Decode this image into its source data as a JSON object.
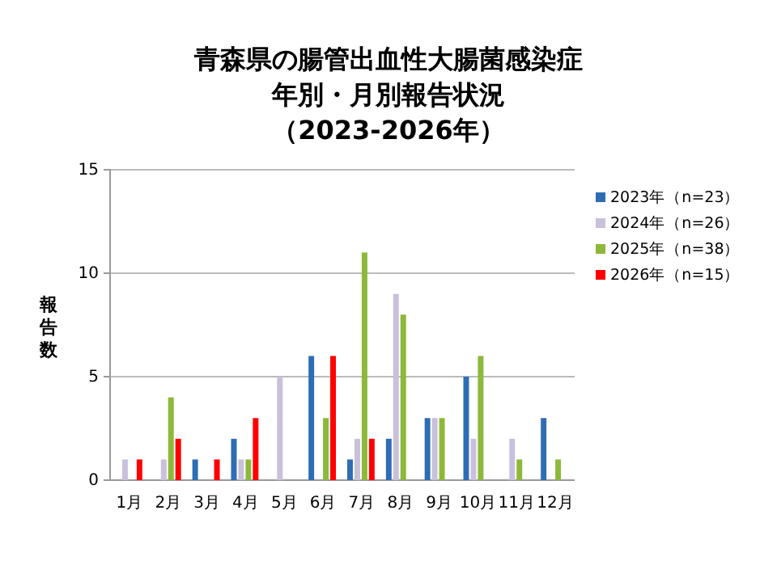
{
  "chart_data": {
    "type": "bar",
    "title": "青森県の腸管出血性大腸菌感染症",
    "subtitle": "年別・月別報告状況",
    "annotations": [
      "（2023-2026年）"
    ],
    "ylabel": "報告数",
    "categories": [
      "1月",
      "2月",
      "3月",
      "4月",
      "5月",
      "6月",
      "7月",
      "8月",
      "9月",
      "10月",
      "11月",
      "12月"
    ],
    "series": [
      {
        "name": "2023年（n=23）",
        "color": "#2e6db4",
        "values": [
          0,
          0,
          1,
          2,
          0,
          6,
          1,
          2,
          3,
          5,
          0,
          3
        ]
      },
      {
        "name": "2024年（n=26）",
        "color": "#c9c0dc",
        "values": [
          1,
          1,
          0,
          1,
          5,
          0,
          2,
          9,
          3,
          2,
          2,
          0
        ]
      },
      {
        "name": "2025年（n=38）",
        "color": "#8db83a",
        "values": [
          0,
          4,
          0,
          1,
          0,
          3,
          11,
          8,
          3,
          6,
          1,
          1
        ]
      },
      {
        "name": "2026年（n=15）",
        "color": "#ff0000",
        "values": [
          1,
          2,
          1,
          3,
          0,
          6,
          2,
          null,
          null,
          null,
          null,
          null
        ]
      }
    ],
    "ylim": [
      0,
      15
    ],
    "yticks": [
      0,
      5,
      10,
      15
    ],
    "grid": "y",
    "legend": "right"
  }
}
